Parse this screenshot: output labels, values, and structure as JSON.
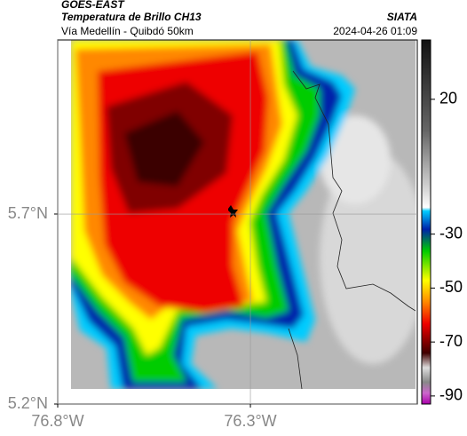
{
  "header": {
    "source": "GOES-EAST",
    "product": "Temperatura de Brillo CH13",
    "region": "Vía Medellín - Quibdó 50km",
    "agency": "SIATA",
    "timestamp": "2024-04-26 01:09"
  },
  "map": {
    "lat_range": [
      5.2,
      6.158
    ],
    "lon_range": [
      -76.8,
      -75.867
    ],
    "lat_ticks": [
      {
        "value": 5.7,
        "label": "5.7°N"
      },
      {
        "value": 5.2,
        "label": "5.2°N"
      }
    ],
    "lon_ticks": [
      {
        "value": -76.8,
        "label": "76.8°W"
      },
      {
        "value": -76.3,
        "label": "76.3°W"
      }
    ]
  },
  "colorbar": {
    "range": [
      -93,
      42
    ],
    "ticks": [
      20,
      -30,
      -50,
      -70,
      -90
    ]
  }
}
